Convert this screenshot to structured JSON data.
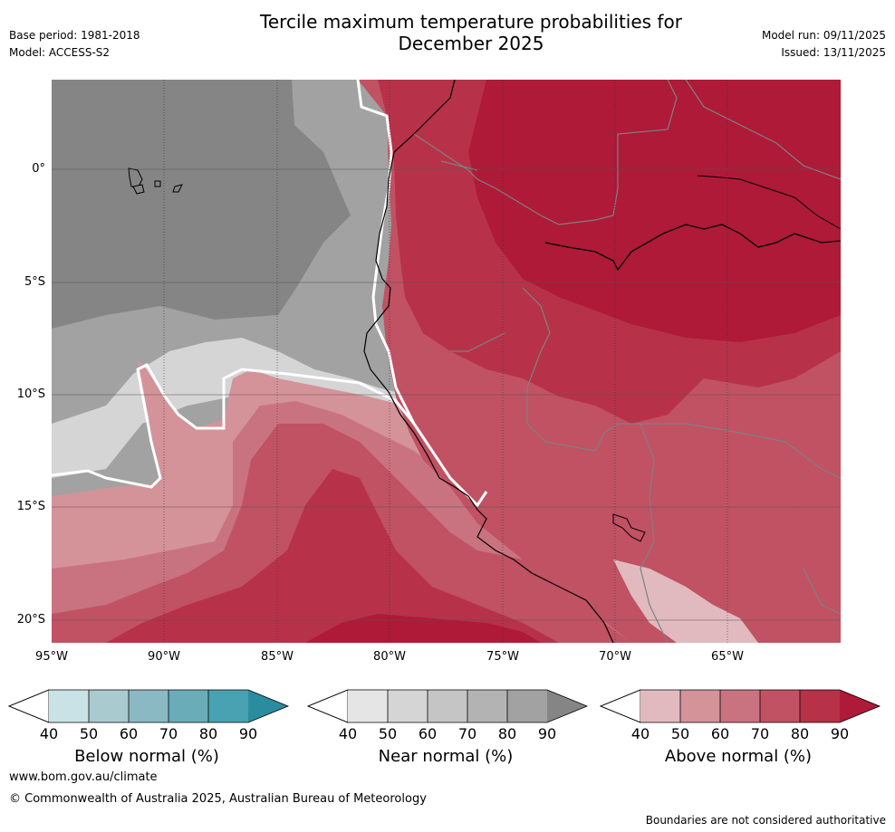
{
  "header": {
    "title_line1": "Tercile maximum temperature probabilities for",
    "title_line2": "December 2025",
    "base_period": "Base period: 1981-2018",
    "model": "Model: ACCESS-S2",
    "model_run": "Model run: 09/11/2025",
    "issued": "Issued: 13/11/2025"
  },
  "map": {
    "lat_labels": [
      "0°",
      "5°S",
      "10°S",
      "15°S",
      "20°S"
    ],
    "lon_labels": [
      "95°W",
      "90°W",
      "85°W",
      "80°W",
      "75°W",
      "70°W",
      "65°W"
    ],
    "extent": {
      "lon_min": -95,
      "lon_max": -60,
      "lat_min": -21,
      "lat_max": 4
    }
  },
  "colorbars": {
    "ticks": [
      "40",
      "50",
      "60",
      "70",
      "80",
      "90"
    ],
    "below": {
      "label": "Below normal (%)",
      "colors": [
        "#c9e2e6",
        "#a9cacf",
        "#8ab9c3",
        "#6aadb8",
        "#48a2b1",
        "#2c8c9f"
      ]
    },
    "near": {
      "label": "Near normal (%)",
      "colors": [
        "#e5e5e5",
        "#d5d5d5",
        "#c5c5c5",
        "#b3b3b3",
        "#a2a2a2",
        "#858585"
      ]
    },
    "above": {
      "label": "Above normal (%)",
      "colors": [
        "#e1bac0",
        "#d49399",
        "#ca7380",
        "#c05263",
        "#b73249",
        "#ae1a38"
      ]
    }
  },
  "footer": {
    "url": "www.bom.gov.au/climate",
    "copyright": "© Commonwealth of Australia 2025, Australian Bureau of Meteorology",
    "disclaimer": "Boundaries are not considered authoritative"
  }
}
